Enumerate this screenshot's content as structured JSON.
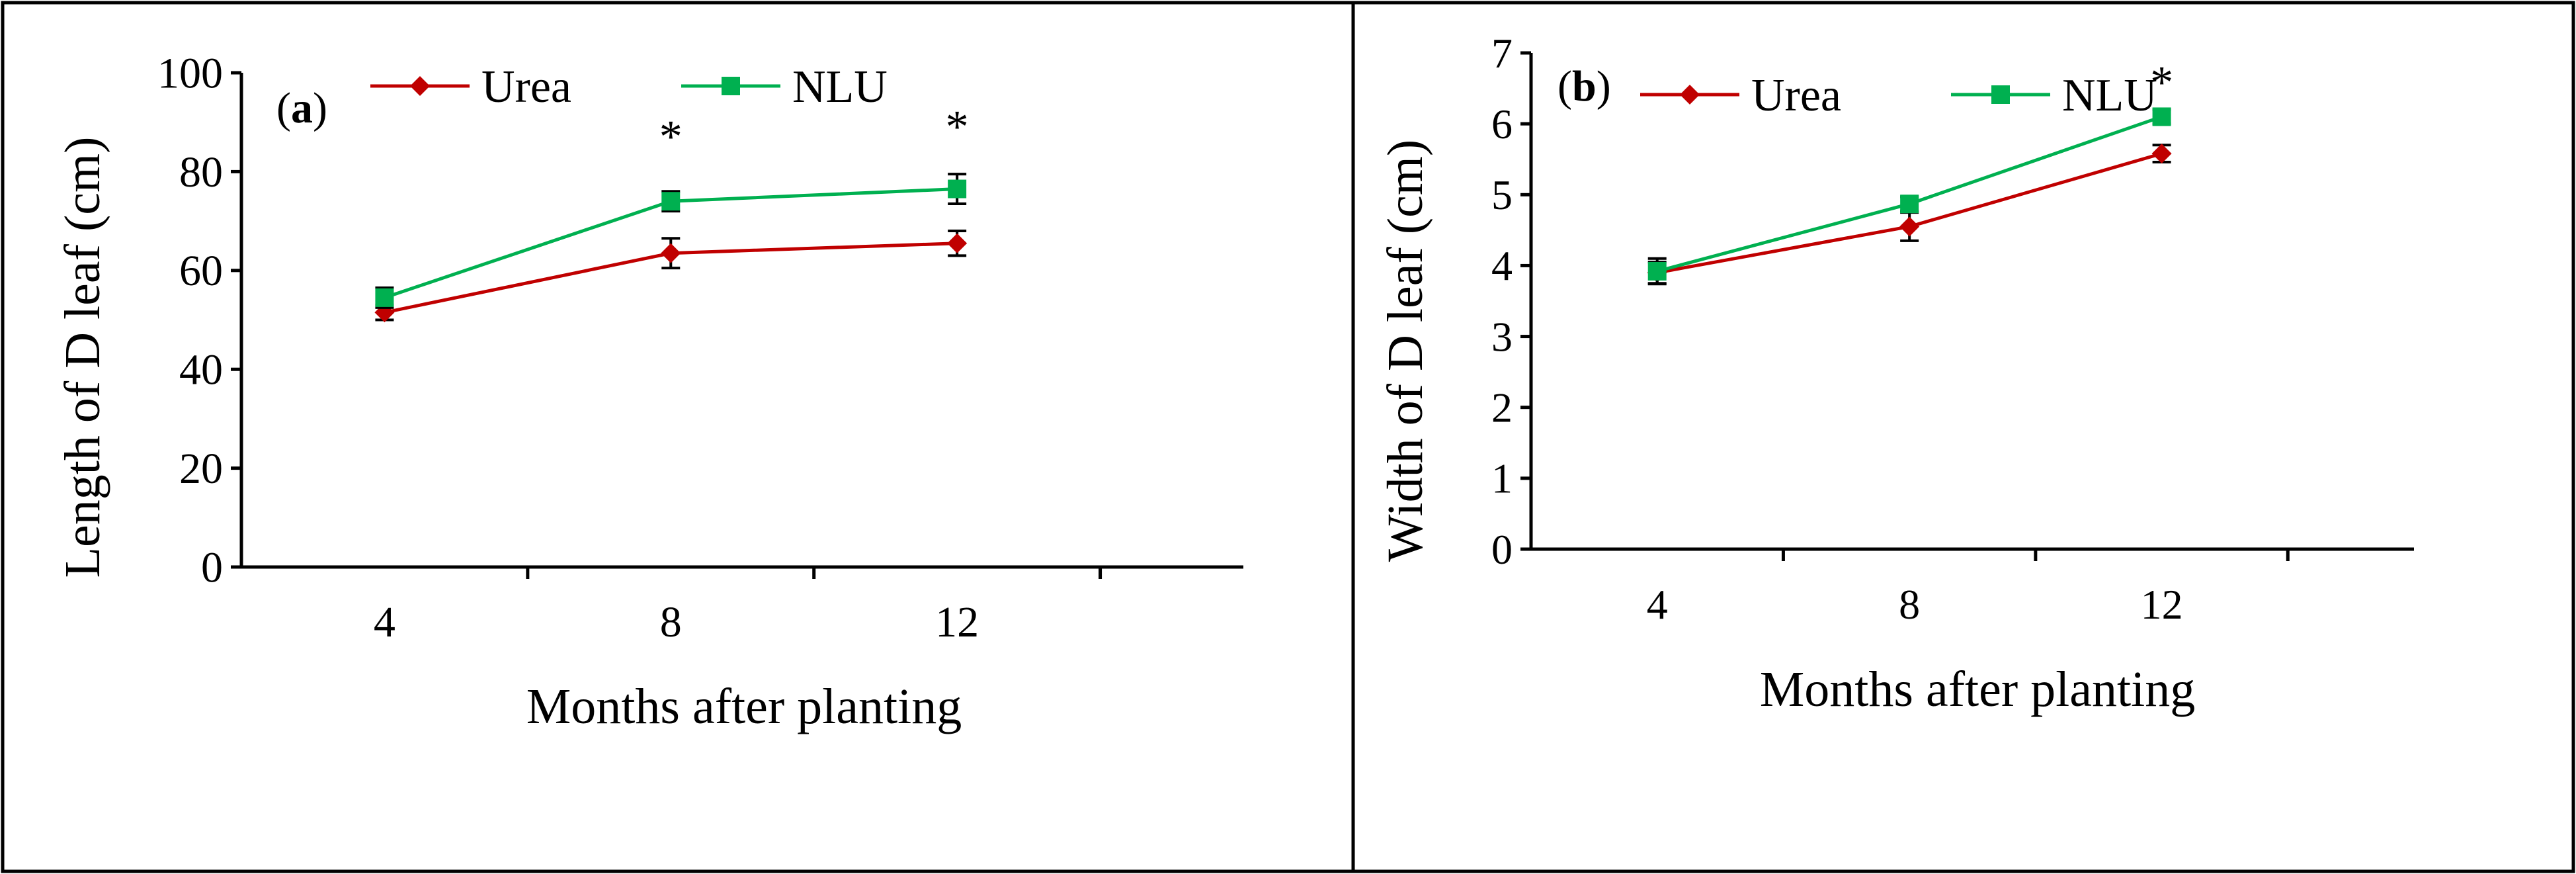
{
  "chart_data": [
    {
      "type": "line",
      "panel_label": "(a)",
      "panel_label_letter": "a",
      "title": "",
      "xlabel": "Months after planting",
      "ylabel": "Length of D leaf (cm)",
      "categories": [
        "4",
        "8",
        "12"
      ],
      "x": [
        4,
        8,
        12
      ],
      "ylim": [
        0,
        100
      ],
      "yticks": [
        "0",
        "20",
        "40",
        "60",
        "80",
        "100"
      ],
      "grid": false,
      "legend_position": "top",
      "series": [
        {
          "name": "Urea",
          "marker": "diamond",
          "color": "#c00000",
          "values": [
            51.5,
            63.5,
            65.5
          ],
          "errors": [
            1.5,
            3.0,
            2.5
          ]
        },
        {
          "name": "NLU",
          "marker": "square",
          "color": "#00b050",
          "values": [
            54.5,
            74.0,
            76.5
          ],
          "errors": [
            2.0,
            2.0,
            3.0
          ]
        }
      ],
      "annotations": [
        {
          "text": "*",
          "x": 8,
          "y": 88
        },
        {
          "text": "*",
          "x": 12,
          "y": 90
        }
      ]
    },
    {
      "type": "line",
      "panel_label": "(b)",
      "panel_label_letter": "b",
      "title": "",
      "xlabel": "Months after planting",
      "ylabel": "Width of D leaf (cm)",
      "categories": [
        "4",
        "8",
        "12"
      ],
      "x": [
        4,
        8,
        12
      ],
      "ylim": [
        0,
        7
      ],
      "yticks": [
        "0",
        "1",
        "2",
        "3",
        "4",
        "5",
        "6",
        "7"
      ],
      "grid": false,
      "legend_position": "top",
      "series": [
        {
          "name": "Urea",
          "marker": "diamond",
          "color": "#c00000",
          "values": [
            3.9,
            4.55,
            5.58
          ],
          "errors": [
            0.15,
            0.2,
            0.12
          ]
        },
        {
          "name": "NLU",
          "marker": "square",
          "color": "#00b050",
          "values": [
            3.92,
            4.87,
            6.1
          ],
          "errors": [
            0.18,
            0.1,
            0.1
          ]
        }
      ],
      "annotations": [
        {
          "text": "*",
          "x": 12,
          "y": 6.65
        }
      ]
    }
  ]
}
